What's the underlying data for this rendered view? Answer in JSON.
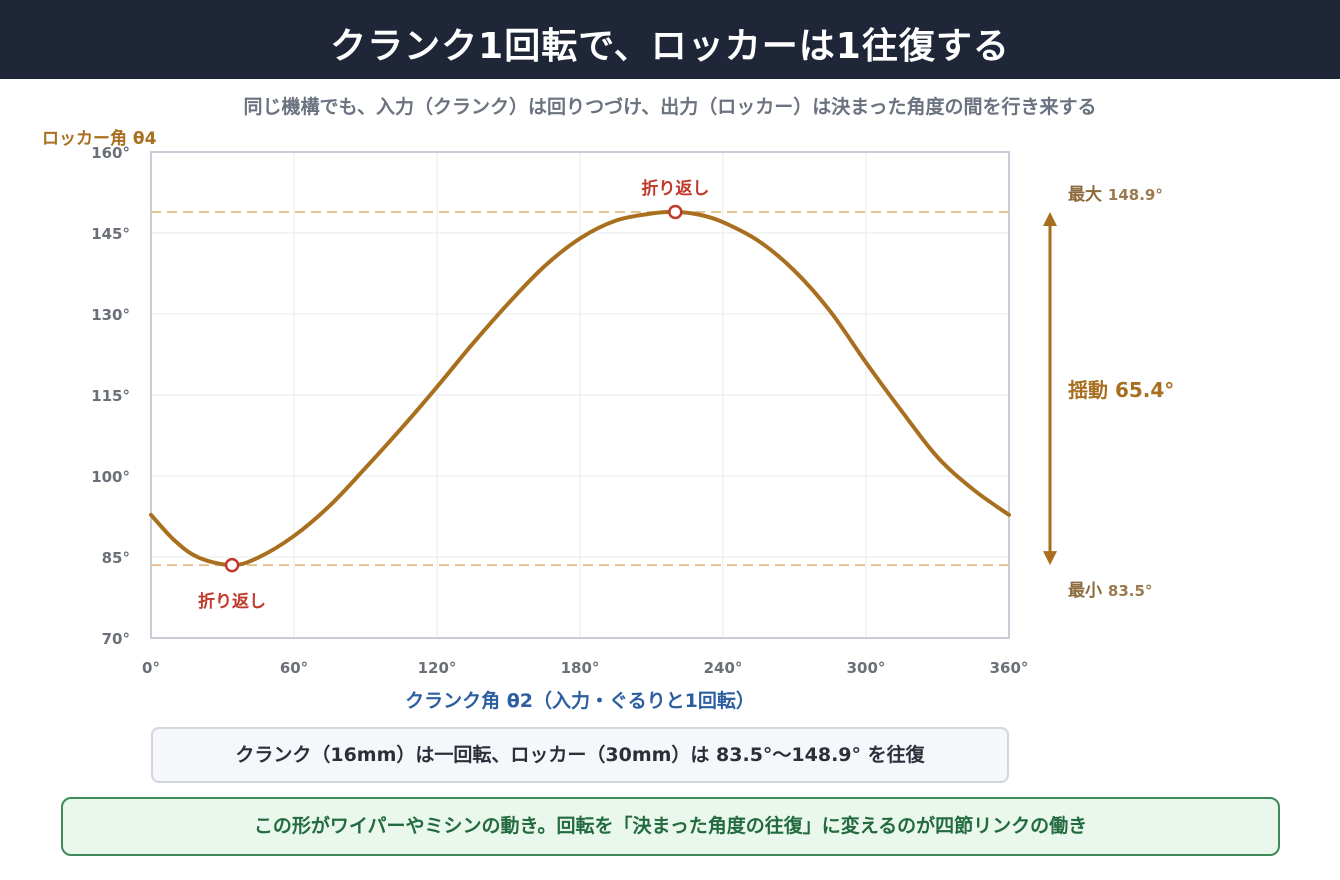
{
  "header": {
    "title": "クランク1回転で、ロッカーは1往復する"
  },
  "subtitle": "同じ機構でも、入力（クランク）は回りつづけ、出力（ロッカー）は決まった角度の間を行き来する",
  "colors": {
    "curve": "#a86f1f",
    "marker": "#c0392b",
    "grid": "#e6e8ee",
    "dashed": "#e2c48f",
    "arrow": "#a86f1f"
  },
  "chart_data": {
    "type": "line",
    "title": "クランク1回転で、ロッカーは1往復する",
    "xlabel": "クランク角 θ2（入力・ぐるりと1回転）",
    "ylabel": "ロッカー角 θ4",
    "xlim": [
      0,
      360
    ],
    "ylim": [
      70,
      160
    ],
    "x_ticks": [
      "0°",
      "60°",
      "120°",
      "180°",
      "240°",
      "300°",
      "360°"
    ],
    "y_ticks": [
      "70°",
      "85°",
      "100°",
      "115°",
      "130°",
      "145°",
      "160°"
    ],
    "grid": true,
    "series": [
      {
        "x": [
          0,
          10,
          20,
          34,
          45,
          60,
          75,
          90,
          105,
          120,
          135,
          150,
          165,
          180,
          195,
          210,
          220,
          230,
          240,
          255,
          270,
          285,
          300,
          315,
          330,
          345,
          360
        ],
        "values": [
          92.8,
          88.0,
          84.9,
          83.5,
          84.9,
          88.9,
          94.5,
          101.5,
          108.8,
          116.5,
          124.5,
          132.0,
          138.8,
          144.0,
          147.3,
          148.6,
          148.9,
          148.4,
          147.0,
          143.5,
          138.0,
          130.5,
          121.0,
          112.0,
          103.5,
          97.5,
          92.8
        ]
      }
    ],
    "extrema": {
      "min": {
        "x": 34,
        "y": 83.5,
        "label": "折り返し"
      },
      "max": {
        "x": 220,
        "y": 148.9,
        "label": "折り返し"
      }
    },
    "annotations": {
      "max_label": "最大",
      "max_value": "148.9°",
      "min_label": "最小",
      "min_value": "83.5°",
      "swing_label": "揺動 65.4°"
    }
  },
  "summary": "クランク（16mm）は一回転、ロッカー（30mm）は 83.5°〜148.9° を往復",
  "note": "この形がワイパーやミシンの動き。回転を「決まった角度の往復」に変えるのが四節リンクの働き"
}
